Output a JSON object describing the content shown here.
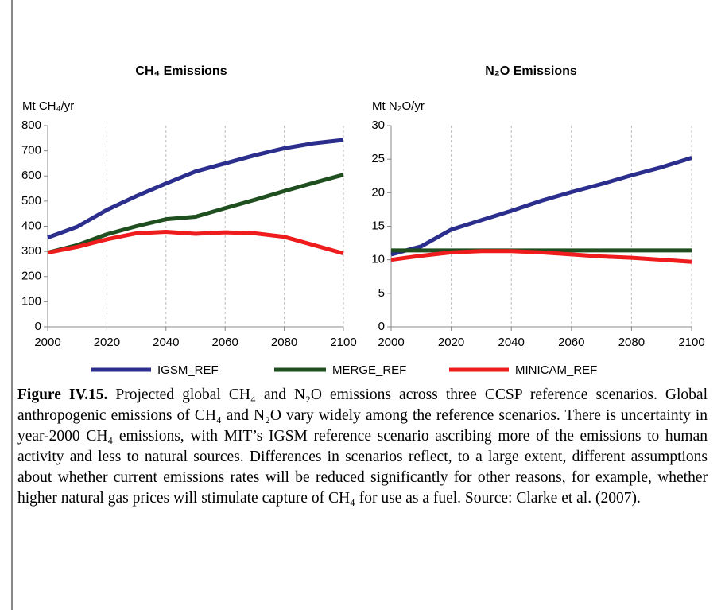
{
  "chart_data": [
    {
      "type": "line",
      "title": "CH₄ Emissions",
      "y_label": "Mt CH₄/yr",
      "x": [
        2000,
        2010,
        2020,
        2030,
        2040,
        2050,
        2060,
        2070,
        2080,
        2090,
        2100
      ],
      "xlim": [
        2000,
        2100
      ],
      "xticks": [
        2000,
        2020,
        2040,
        2060,
        2080,
        2100
      ],
      "ylim": [
        0,
        800
      ],
      "yticks": [
        0,
        100,
        200,
        300,
        400,
        500,
        600,
        700,
        800
      ],
      "grid": true,
      "series": [
        {
          "name": "IGSM_REF",
          "color": "#2b2e8c",
          "values": [
            355,
            398,
            465,
            520,
            570,
            618,
            650,
            682,
            710,
            730,
            743
          ]
        },
        {
          "name": "MERGE_REF",
          "color": "#1f4f1f",
          "values": [
            295,
            325,
            368,
            400,
            428,
            438,
            472,
            505,
            540,
            573,
            605
          ]
        },
        {
          "name": "MINICAM_REF",
          "color": "#ee1c1c",
          "values": [
            295,
            318,
            348,
            372,
            378,
            370,
            376,
            372,
            358,
            325,
            292
          ]
        }
      ]
    },
    {
      "type": "line",
      "title": "N₂O Emissions",
      "y_label": "Mt N₂O/yr",
      "x": [
        2000,
        2010,
        2020,
        2030,
        2040,
        2050,
        2060,
        2070,
        2080,
        2090,
        2100
      ],
      "xlim": [
        2000,
        2100
      ],
      "xticks": [
        2000,
        2020,
        2040,
        2060,
        2080,
        2100
      ],
      "ylim": [
        0,
        30
      ],
      "yticks": [
        0,
        5,
        10,
        15,
        20,
        25,
        30
      ],
      "grid": true,
      "series": [
        {
          "color": "#2b2e8c",
          "values": [
            10.8,
            12,
            14.5,
            15.9,
            17.3,
            18.8,
            20.1,
            21.3,
            22.6,
            23.8,
            25.2
          ]
        },
        {
          "color": "#1f4f1f",
          "values": [
            11.4,
            11.4,
            11.4,
            11.4,
            11.4,
            11.4,
            11.4,
            11.4,
            11.4,
            11.4,
            11.4
          ]
        },
        {
          "color": "#ee1c1c",
          "values": [
            10,
            10.6,
            11.1,
            11.3,
            11.3,
            11.1,
            10.8,
            10.5,
            10.3,
            10.0,
            9.7
          ]
        }
      ]
    }
  ],
  "caption": {
    "label": "Figure IV.15.",
    "text": "Projected global CH₄ and N₂O emissions across three CCSP reference scenarios. Global anthropogenic emissions of CH₄ and N₂O vary widely among the reference scenarios. There is uncertainty in year-2000 CH₄ emissions, with MIT’s IGSM reference scenario ascribing more of the emissions to human activity and less to natural sources. Differences in scenarios reflect, to a large extent, different assumptions about whether current emissions rates will be reduced significantly for other reasons, for example, whether higher natural gas prices will stimulate capture of CH₄ for use as a fuel. Source: Clarke et al. (2007)."
  }
}
